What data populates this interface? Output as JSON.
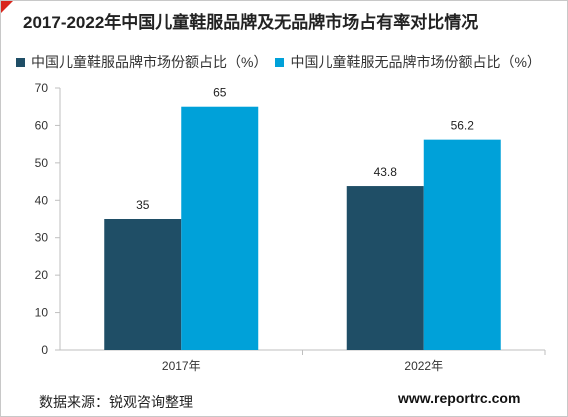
{
  "title": "2017-2022年中国儿童鞋服品牌及无品牌市场占有率对比情况",
  "source": "数据来源：锐观咨询整理",
  "website": "www.reportrc.com",
  "colors": {
    "series1": "#1f4e66",
    "series2": "#00a1d9",
    "axis": "#bfbfbf",
    "corner": "#d9261c"
  },
  "chart_data": {
    "type": "bar",
    "title": "2017-2022年中国儿童鞋服品牌及无品牌市场占有率对比情况",
    "categories": [
      "2017年",
      "2022年"
    ],
    "series": [
      {
        "name": "中国儿童鞋服品牌市场份额占比（%）",
        "values": [
          35,
          43.8
        ]
      },
      {
        "name": "中国儿童鞋服无品牌市场份额占比（%）",
        "values": [
          65,
          56.2
        ]
      }
    ],
    "ylim": [
      0,
      70
    ],
    "yticks": [
      0,
      10,
      20,
      30,
      40,
      50,
      60,
      70
    ],
    "data_labels": [
      [
        "35",
        "43.8"
      ],
      [
        "65",
        "56.2"
      ]
    ],
    "grid": false,
    "legend": "top-left"
  }
}
